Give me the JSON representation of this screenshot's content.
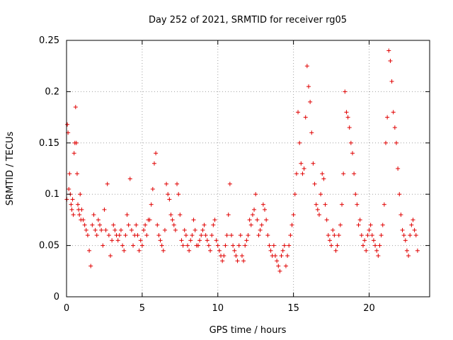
{
  "chart_data": {
    "type": "scatter",
    "title": "Day 252 of 2021, SRMTID for receiver rg05",
    "xlabel": "GPS time / hours",
    "ylabel": "SRMTID / TECUs",
    "xlim": [
      0,
      24
    ],
    "ylim": [
      0,
      0.25
    ],
    "x_ticks": [
      0,
      5,
      10,
      15,
      20
    ],
    "x_tick_labels": [
      "0",
      "5",
      "10",
      "15",
      "20"
    ],
    "y_ticks": [
      0,
      0.05,
      0.1,
      0.15,
      0.2,
      0.25
    ],
    "y_tick_labels": [
      "0",
      "0.05",
      "0.1",
      "0.15",
      "0.2",
      "0.25"
    ],
    "grid": true,
    "marker": "+",
    "color": "#e00000",
    "series": [
      {
        "name": "SRMTID",
        "x": [
          0.02,
          0.05,
          0.1,
          0.15,
          0.2,
          0.25,
          0.3,
          0.35,
          0.4,
          0.45,
          0.5,
          0.55,
          0.6,
          0.65,
          0.7,
          0.75,
          0.8,
          0.85,
          0.9,
          0.95,
          1.0,
          1.1,
          1.2,
          1.3,
          1.4,
          1.5,
          1.6,
          1.7,
          1.8,
          1.9,
          2.0,
          2.1,
          2.2,
          2.3,
          2.4,
          2.5,
          2.6,
          2.7,
          2.8,
          2.9,
          3.0,
          3.1,
          3.2,
          3.3,
          3.4,
          3.5,
          3.6,
          3.7,
          3.8,
          3.9,
          4.0,
          4.1,
          4.2,
          4.3,
          4.4,
          4.5,
          4.6,
          4.7,
          4.8,
          4.9,
          5.0,
          5.1,
          5.2,
          5.3,
          5.4,
          5.5,
          5.6,
          5.7,
          5.8,
          5.9,
          6.0,
          6.1,
          6.2,
          6.3,
          6.4,
          6.5,
          6.6,
          6.7,
          6.8,
          6.9,
          7.0,
          7.1,
          7.2,
          7.3,
          7.4,
          7.5,
          7.6,
          7.7,
          7.8,
          7.9,
          8.0,
          8.1,
          8.2,
          8.3,
          8.4,
          8.5,
          8.6,
          8.7,
          8.8,
          8.9,
          9.0,
          9.1,
          9.2,
          9.3,
          9.4,
          9.5,
          9.6,
          9.7,
          9.8,
          9.9,
          10.0,
          10.1,
          10.2,
          10.3,
          10.4,
          10.5,
          10.6,
          10.7,
          10.8,
          10.9,
          11.0,
          11.1,
          11.2,
          11.3,
          11.4,
          11.5,
          11.6,
          11.7,
          11.8,
          11.9,
          12.0,
          12.1,
          12.2,
          12.3,
          12.4,
          12.5,
          12.6,
          12.7,
          12.8,
          12.9,
          13.0,
          13.1,
          13.2,
          13.3,
          13.4,
          13.5,
          13.6,
          13.7,
          13.8,
          13.9,
          14.0,
          14.1,
          14.2,
          14.3,
          14.4,
          14.5,
          14.6,
          14.7,
          14.8,
          14.9,
          15.0,
          15.1,
          15.2,
          15.3,
          15.4,
          15.5,
          15.6,
          15.7,
          15.8,
          15.9,
          16.0,
          16.1,
          16.2,
          16.3,
          16.4,
          16.5,
          16.6,
          16.7,
          16.8,
          16.9,
          17.0,
          17.1,
          17.2,
          17.3,
          17.4,
          17.5,
          17.6,
          17.7,
          17.8,
          17.9,
          18.0,
          18.1,
          18.2,
          18.3,
          18.4,
          18.5,
          18.6,
          18.7,
          18.8,
          18.9,
          19.0,
          19.1,
          19.2,
          19.3,
          19.4,
          19.5,
          19.6,
          19.7,
          19.8,
          19.9,
          20.0,
          20.1,
          20.2,
          20.3,
          20.4,
          20.5,
          20.6,
          20.7,
          20.8,
          20.9,
          21.0,
          21.1,
          21.2,
          21.3,
          21.4,
          21.5,
          21.6,
          21.7,
          21.8,
          21.9,
          22.0,
          22.1,
          22.2,
          22.3,
          22.4,
          22.5,
          22.6,
          22.7,
          22.8,
          22.9,
          23.0,
          23.1,
          23.2
        ],
        "y": [
          0.095,
          0.168,
          0.16,
          0.105,
          0.12,
          0.1,
          0.09,
          0.085,
          0.095,
          0.08,
          0.14,
          0.15,
          0.185,
          0.15,
          0.12,
          0.09,
          0.085,
          0.08,
          0.1,
          0.075,
          0.085,
          0.075,
          0.07,
          0.065,
          0.06,
          0.045,
          0.03,
          0.07,
          0.08,
          0.065,
          0.06,
          0.075,
          0.07,
          0.065,
          0.05,
          0.085,
          0.065,
          0.11,
          0.06,
          0.04,
          0.055,
          0.07,
          0.065,
          0.06,
          0.055,
          0.06,
          0.065,
          0.05,
          0.045,
          0.06,
          0.08,
          0.07,
          0.115,
          0.065,
          0.05,
          0.06,
          0.07,
          0.06,
          0.045,
          0.055,
          0.05,
          0.065,
          0.07,
          0.06,
          0.075,
          0.075,
          0.09,
          0.105,
          0.13,
          0.14,
          0.07,
          0.06,
          0.055,
          0.05,
          0.045,
          0.065,
          0.11,
          0.1,
          0.095,
          0.08,
          0.075,
          0.07,
          0.065,
          0.11,
          0.1,
          0.08,
          0.055,
          0.05,
          0.065,
          0.06,
          0.05,
          0.045,
          0.055,
          0.06,
          0.075,
          0.065,
          0.05,
          0.05,
          0.055,
          0.06,
          0.065,
          0.07,
          0.06,
          0.055,
          0.05,
          0.045,
          0.06,
          0.07,
          0.075,
          0.055,
          0.05,
          0.045,
          0.04,
          0.035,
          0.04,
          0.05,
          0.06,
          0.08,
          0.11,
          0.06,
          0.05,
          0.045,
          0.04,
          0.035,
          0.05,
          0.06,
          0.04,
          0.035,
          0.05,
          0.055,
          0.06,
          0.075,
          0.07,
          0.08,
          0.085,
          0.1,
          0.075,
          0.06,
          0.065,
          0.07,
          0.09,
          0.085,
          0.075,
          0.06,
          0.05,
          0.045,
          0.04,
          0.05,
          0.04,
          0.035,
          0.03,
          0.025,
          0.04,
          0.045,
          0.05,
          0.03,
          0.04,
          0.05,
          0.06,
          0.07,
          0.08,
          0.1,
          0.12,
          0.18,
          0.15,
          0.13,
          0.12,
          0.125,
          0.175,
          0.225,
          0.205,
          0.19,
          0.16,
          0.13,
          0.11,
          0.09,
          0.085,
          0.08,
          0.1,
          0.12,
          0.115,
          0.09,
          0.075,
          0.06,
          0.055,
          0.05,
          0.065,
          0.06,
          0.045,
          0.05,
          0.06,
          0.07,
          0.09,
          0.12,
          0.2,
          0.18,
          0.175,
          0.165,
          0.15,
          0.14,
          0.12,
          0.1,
          0.09,
          0.07,
          0.075,
          0.06,
          0.05,
          0.055,
          0.045,
          0.06,
          0.065,
          0.07,
          0.06,
          0.055,
          0.05,
          0.045,
          0.04,
          0.05,
          0.06,
          0.07,
          0.09,
          0.15,
          0.175,
          0.24,
          0.23,
          0.21,
          0.18,
          0.165,
          0.15,
          0.125,
          0.1,
          0.08,
          0.065,
          0.06,
          0.055,
          0.045,
          0.04,
          0.06,
          0.07,
          0.075,
          0.065,
          0.06,
          0.045
        ]
      }
    ]
  }
}
